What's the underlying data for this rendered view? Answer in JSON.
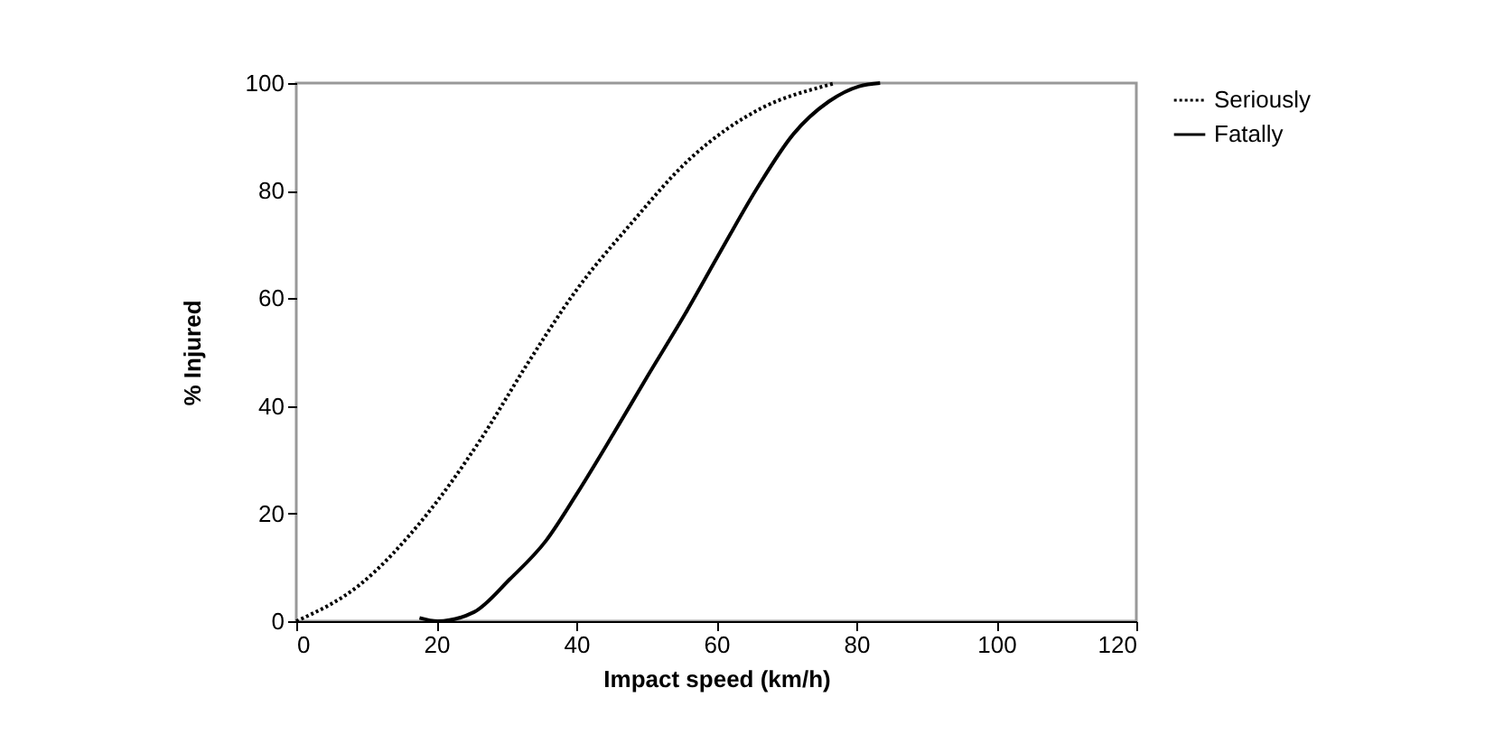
{
  "chart_data": {
    "type": "line",
    "xlabel": "Impact speed (km/h)",
    "ylabel": "% Injured",
    "xlim": [
      0,
      120
    ],
    "xticks": [
      0,
      20,
      40,
      60,
      80,
      100,
      120
    ],
    "ylim": [
      0,
      100
    ],
    "yticks": [
      0,
      20,
      40,
      60,
      80,
      100
    ],
    "grid": false,
    "legend": "right",
    "series": [
      {
        "name": "Seriously",
        "color": "#000000",
        "line_style": "dotted",
        "x": [
          0,
          9,
          18.5,
          26.2,
          33.1,
          40,
          47.7,
          56.3,
          66.7,
          75.3,
          77
        ],
        "values": [
          0,
          6.7,
          19.6,
          33.5,
          48,
          61.5,
          73.7,
          86,
          95.5,
          99.4,
          100
        ]
      },
      {
        "name": "Fatally",
        "color": "#000000",
        "line_style": "solid",
        "x": [
          17.6,
          20.2,
          25.4,
          30.5,
          35.7,
          40,
          45.2,
          50.3,
          55.5,
          60.6,
          65.8,
          71,
          76.1,
          80.4,
          83.4
        ],
        "values": [
          0.6,
          0,
          1.7,
          7.8,
          15,
          23.5,
          34.6,
          45.8,
          57,
          68.7,
          80.4,
          90.5,
          96.6,
          99.4,
          100
        ]
      }
    ]
  }
}
